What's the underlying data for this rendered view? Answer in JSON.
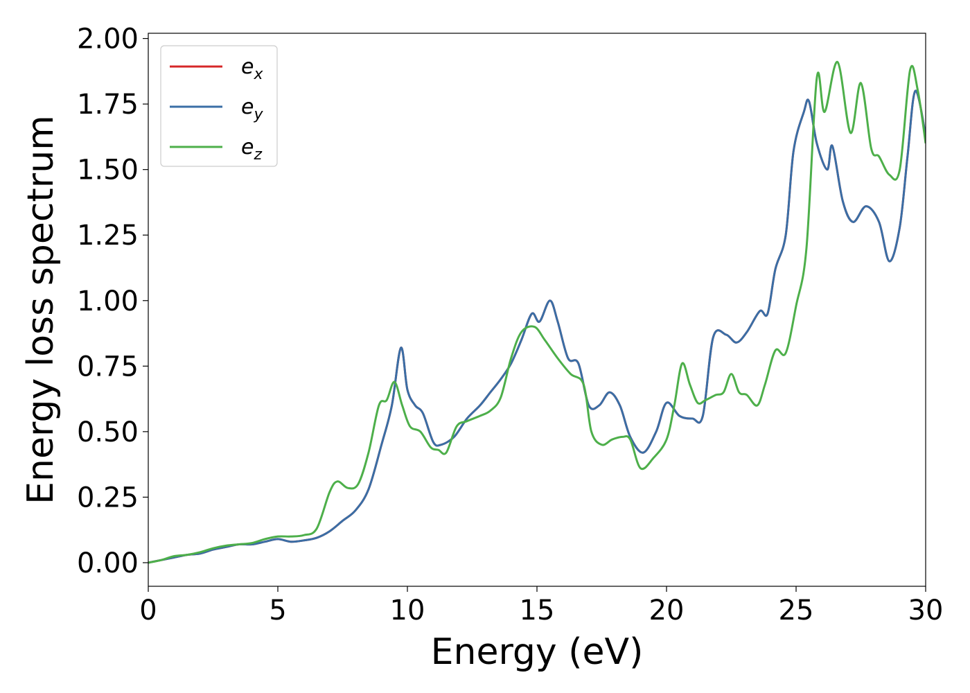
{
  "chart_data": {
    "type": "line",
    "title": "",
    "xlabel": "Energy (eV)",
    "ylabel": "Energy loss spectrum",
    "xlim": [
      0,
      30
    ],
    "ylim": [
      -0.09,
      2.02
    ],
    "xticks": [
      "0",
      "5",
      "10",
      "15",
      "20",
      "25",
      "30"
    ],
    "xtick_values": [
      0,
      5,
      10,
      15,
      20,
      25,
      30
    ],
    "yticks": [
      "0.00",
      "0.25",
      "0.50",
      "0.75",
      "1.00",
      "1.25",
      "1.50",
      "1.75",
      "2.00"
    ],
    "ytick_values": [
      0,
      0.25,
      0.5,
      0.75,
      1.0,
      1.25,
      1.5,
      1.75,
      2.0
    ],
    "grid": false,
    "legend_position": "top-left",
    "series": [
      {
        "name": "e",
        "subscript": "x",
        "color": "#d62728",
        "x": [
          0,
          0.5,
          1,
          1.5,
          2,
          2.5,
          3,
          3.5,
          4,
          4.5,
          5,
          5.5,
          6,
          6.5,
          7,
          7.5,
          8,
          8.5,
          9,
          9.4,
          9.75,
          10,
          10.3,
          10.6,
          11,
          11.3,
          11.8,
          12.3,
          12.8,
          13.2,
          13.6,
          14,
          14.4,
          14.8,
          15.1,
          15.5,
          15.8,
          16.2,
          16.6,
          17,
          17.4,
          17.8,
          18.2,
          18.6,
          19.1,
          19.6,
          20,
          20.5,
          21,
          21.4,
          21.8,
          22.3,
          22.7,
          23.1,
          23.6,
          23.9,
          24.2,
          24.6,
          24.9,
          25.3,
          25.5,
          25.8,
          26.2,
          26.4,
          26.8,
          27.2,
          27.7,
          28.2,
          28.6,
          29,
          29.3,
          29.6,
          30
        ],
        "y": [
          0,
          0.01,
          0.02,
          0.03,
          0.035,
          0.05,
          0.06,
          0.07,
          0.07,
          0.08,
          0.09,
          0.08,
          0.085,
          0.095,
          0.12,
          0.16,
          0.2,
          0.28,
          0.45,
          0.6,
          0.82,
          0.66,
          0.6,
          0.57,
          0.46,
          0.45,
          0.48,
          0.55,
          0.6,
          0.65,
          0.7,
          0.76,
          0.85,
          0.95,
          0.92,
          1.0,
          0.92,
          0.78,
          0.76,
          0.6,
          0.6,
          0.65,
          0.6,
          0.48,
          0.42,
          0.5,
          0.61,
          0.56,
          0.55,
          0.56,
          0.86,
          0.87,
          0.84,
          0.88,
          0.96,
          0.95,
          1.12,
          1.25,
          1.57,
          1.72,
          1.76,
          1.6,
          1.5,
          1.59,
          1.38,
          1.3,
          1.36,
          1.3,
          1.15,
          1.28,
          1.55,
          1.8,
          1.63
        ]
      },
      {
        "name": "e",
        "subscript": "y",
        "color": "#3a6ea5",
        "x": [
          0,
          0.5,
          1,
          1.5,
          2,
          2.5,
          3,
          3.5,
          4,
          4.5,
          5,
          5.5,
          6,
          6.5,
          7,
          7.5,
          8,
          8.5,
          9,
          9.4,
          9.75,
          10,
          10.3,
          10.6,
          11,
          11.3,
          11.8,
          12.3,
          12.8,
          13.2,
          13.6,
          14,
          14.4,
          14.8,
          15.1,
          15.5,
          15.8,
          16.2,
          16.6,
          17,
          17.4,
          17.8,
          18.2,
          18.6,
          19.1,
          19.6,
          20,
          20.5,
          21,
          21.4,
          21.8,
          22.3,
          22.7,
          23.1,
          23.6,
          23.9,
          24.2,
          24.6,
          24.9,
          25.3,
          25.5,
          25.8,
          26.2,
          26.4,
          26.8,
          27.2,
          27.7,
          28.2,
          28.6,
          29,
          29.3,
          29.6,
          30
        ],
        "y": [
          0,
          0.01,
          0.02,
          0.03,
          0.035,
          0.05,
          0.06,
          0.07,
          0.07,
          0.08,
          0.09,
          0.08,
          0.085,
          0.095,
          0.12,
          0.16,
          0.2,
          0.28,
          0.45,
          0.6,
          0.82,
          0.66,
          0.6,
          0.57,
          0.46,
          0.45,
          0.48,
          0.55,
          0.6,
          0.65,
          0.7,
          0.76,
          0.85,
          0.95,
          0.92,
          1.0,
          0.92,
          0.78,
          0.76,
          0.6,
          0.6,
          0.65,
          0.6,
          0.48,
          0.42,
          0.5,
          0.61,
          0.56,
          0.55,
          0.56,
          0.86,
          0.87,
          0.84,
          0.88,
          0.96,
          0.95,
          1.12,
          1.25,
          1.57,
          1.72,
          1.76,
          1.6,
          1.5,
          1.59,
          1.38,
          1.3,
          1.36,
          1.3,
          1.15,
          1.28,
          1.55,
          1.8,
          1.63
        ]
      },
      {
        "name": "e",
        "subscript": "z",
        "color": "#4daf4a",
        "x": [
          0,
          0.5,
          1,
          1.5,
          2,
          2.5,
          3,
          3.5,
          4,
          4.5,
          5,
          5.5,
          6,
          6.5,
          7,
          7.3,
          7.7,
          8.1,
          8.5,
          8.9,
          9.2,
          9.5,
          9.8,
          10.1,
          10.5,
          10.9,
          11.2,
          11.5,
          11.9,
          12.3,
          12.8,
          13.2,
          13.6,
          14,
          14.4,
          14.9,
          15.3,
          15.8,
          16.3,
          16.8,
          17.1,
          17.5,
          17.9,
          18.3,
          18.6,
          19,
          19.5,
          20,
          20.3,
          20.6,
          20.9,
          21.2,
          21.5,
          21.9,
          22.2,
          22.5,
          22.8,
          23.1,
          23.5,
          23.8,
          24.2,
          24.6,
          25,
          25.4,
          25.8,
          26.1,
          26.6,
          27.1,
          27.5,
          27.9,
          28.2,
          28.6,
          29,
          29.4,
          29.7,
          30
        ],
        "y": [
          0,
          0.01,
          0.025,
          0.03,
          0.04,
          0.055,
          0.065,
          0.07,
          0.075,
          0.09,
          0.1,
          0.1,
          0.105,
          0.13,
          0.27,
          0.31,
          0.285,
          0.3,
          0.42,
          0.6,
          0.62,
          0.69,
          0.6,
          0.52,
          0.5,
          0.44,
          0.43,
          0.42,
          0.52,
          0.54,
          0.56,
          0.58,
          0.63,
          0.78,
          0.88,
          0.9,
          0.85,
          0.78,
          0.72,
          0.68,
          0.5,
          0.45,
          0.47,
          0.48,
          0.47,
          0.36,
          0.4,
          0.47,
          0.6,
          0.76,
          0.68,
          0.61,
          0.62,
          0.64,
          0.65,
          0.72,
          0.65,
          0.64,
          0.6,
          0.68,
          0.81,
          0.8,
          0.98,
          1.2,
          1.85,
          1.72,
          1.91,
          1.64,
          1.83,
          1.58,
          1.55,
          1.48,
          1.5,
          1.88,
          1.8,
          1.6
        ]
      }
    ]
  }
}
